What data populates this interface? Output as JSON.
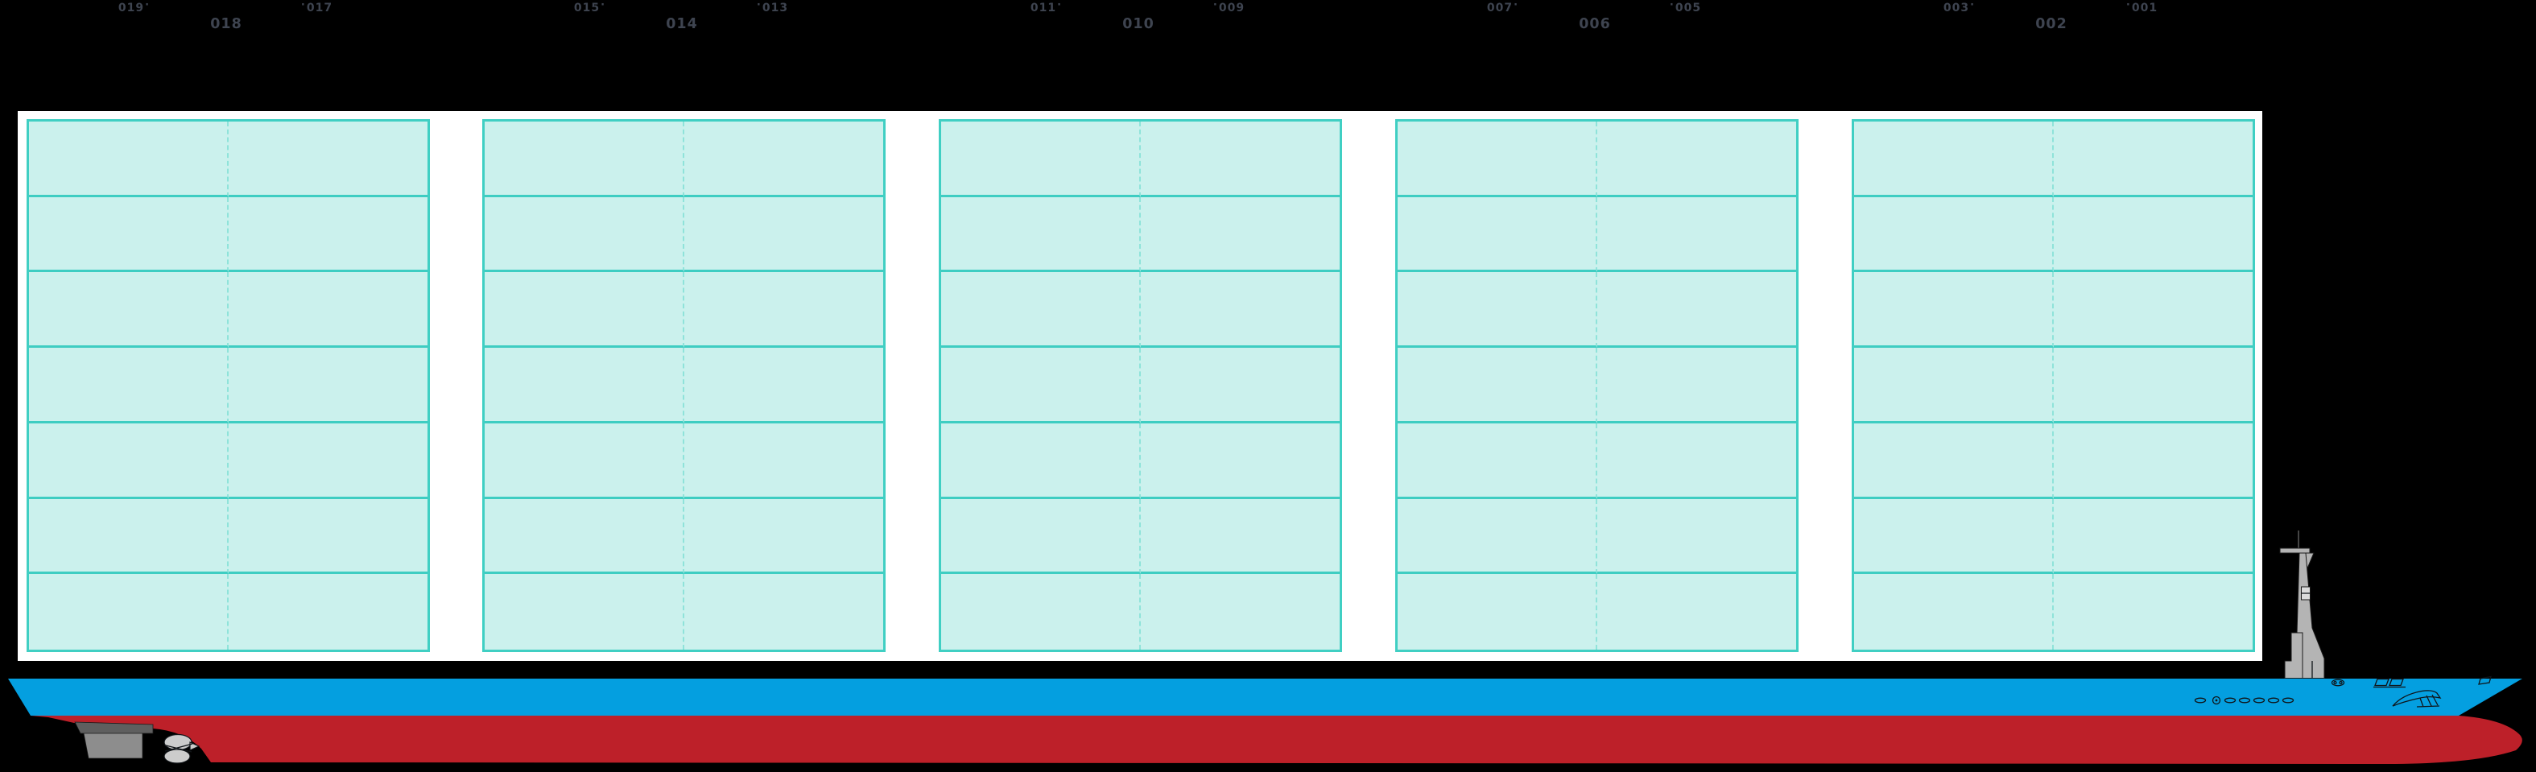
{
  "diagram": {
    "tick": "·",
    "grid": {
      "rows_per_bay": 7,
      "columns_per_bay": 2,
      "bay_group_count": 5
    },
    "bay_groups": [
      {
        "bay": "018",
        "left_sub_bay": "019",
        "right_sub_bay": "017"
      },
      {
        "bay": "014",
        "left_sub_bay": "015",
        "right_sub_bay": "013"
      },
      {
        "bay": "010",
        "left_sub_bay": "011",
        "right_sub_bay": "009"
      },
      {
        "bay": "006",
        "left_sub_bay": "007",
        "right_sub_bay": "005"
      },
      {
        "bay": "002",
        "left_sub_bay": "003",
        "right_sub_bay": "001"
      }
    ]
  },
  "colors": {
    "background": "#000000",
    "panel": "#ffffff",
    "cell_fill": "#cbf1ed",
    "cell_border": "#40cfc3",
    "cell_row_line": "#3ecdc2",
    "cell_divider_dashed": "#8fe3da",
    "label_text": "#3e4450",
    "hull_blue": "#049fe0",
    "hull_red": "#bd2029",
    "mast_gray": "#b4b4b4",
    "rudder_gray": "#8d8d8d",
    "rudder_dark": "#5f5f5f",
    "propeller_gray": "#cccccc",
    "detail_line": "#101418"
  }
}
